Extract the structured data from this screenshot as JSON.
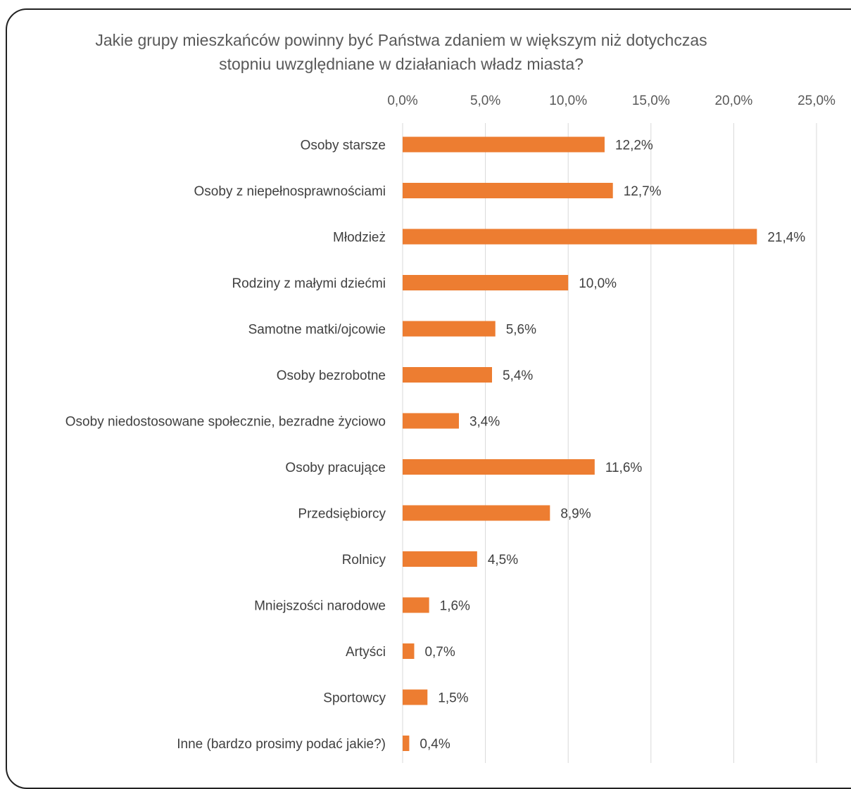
{
  "chart_data": {
    "type": "bar",
    "orientation": "horizontal",
    "title": "Jakie grupy mieszkańców powinny być Państwa zdaniem w większym niż dotychczas stopniu uwzględniane w działaniach władz miasta?",
    "xlabel": "",
    "ylabel": "",
    "xlim": [
      0,
      25
    ],
    "grid": true,
    "ticks": [
      "0,0%",
      "5,0%",
      "10,0%",
      "15,0%",
      "20,0%",
      "25,0%"
    ],
    "categories": [
      "Osoby starsze",
      "Osoby z niepełnosprawnościami",
      "Młodzież",
      "Rodziny z małymi dziećmi",
      "Samotne matki/ojcowie",
      "Osoby bezrobotne",
      "Osoby niedostosowane społecznie, bezradne życiowo",
      "Osoby pracujące",
      "Przedsiębiorcy",
      "Rolnicy",
      "Mniejszości narodowe",
      "Artyści",
      "Sportowcy",
      "Inne (bardzo prosimy podać jakie?)"
    ],
    "values": [
      12.2,
      12.7,
      21.4,
      10.0,
      5.6,
      5.4,
      3.4,
      11.6,
      8.9,
      4.5,
      1.6,
      0.7,
      1.5,
      0.4
    ],
    "data_labels": [
      "12,2%",
      "12,7%",
      "21,4%",
      "10,0%",
      "5,6%",
      "5,4%",
      "3,4%",
      "11,6%",
      "8,9%",
      "4,5%",
      "1,6%",
      "0,7%",
      "1,5%",
      "0,4%"
    ],
    "colors": {
      "bar": "#ED7D31",
      "grid": "#D9D9D9"
    }
  }
}
